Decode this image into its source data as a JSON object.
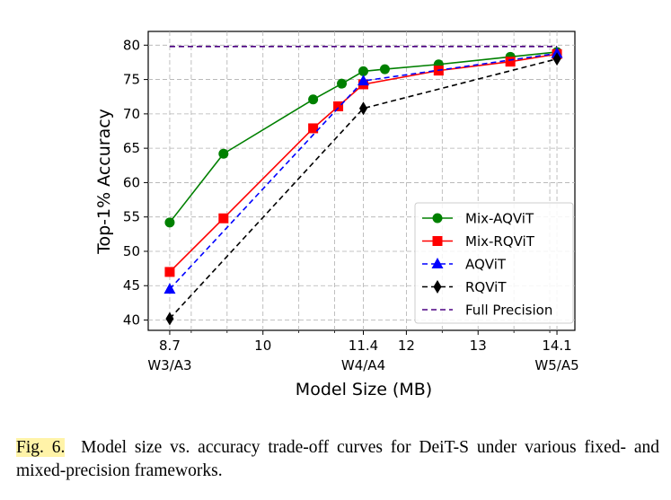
{
  "chart_data": {
    "type": "line",
    "title": "",
    "xlabel": "Model Size (MB)",
    "ylabel": "Top-1% Accuracy",
    "xlim": [
      8.4,
      14.35
    ],
    "ylim": [
      38.5,
      82
    ],
    "grid": true,
    "legend_position": "lower-right",
    "x_ticks": [
      {
        "value": 8.7,
        "label": "8.7"
      },
      {
        "value": 10,
        "label": "10"
      },
      {
        "value": 11.4,
        "label": "11.4"
      },
      {
        "value": 12,
        "label": "12"
      },
      {
        "value": 13,
        "label": "13"
      },
      {
        "value": 14.1,
        "label": "14.1"
      }
    ],
    "x_minor_ticks": [
      9.0,
      9.5,
      10.5,
      11.0,
      12.5,
      13.5,
      14.0
    ],
    "x_bit_labels": [
      {
        "value": 8.7,
        "label": "W3/A3"
      },
      {
        "value": 11.4,
        "label": "W4/A4"
      },
      {
        "value": 14.1,
        "label": "W5/A5"
      }
    ],
    "y_ticks": [
      40,
      45,
      50,
      55,
      60,
      65,
      70,
      75,
      80
    ],
    "series": [
      {
        "name": "Mix-AQViT",
        "color": "#008000",
        "marker": "circle",
        "dash": "solid",
        "x": [
          8.7,
          9.45,
          10.7,
          11.1,
          11.4,
          11.7,
          12.45,
          13.45,
          14.1
        ],
        "y": [
          54.2,
          64.2,
          72.1,
          74.4,
          76.2,
          76.5,
          77.2,
          78.3,
          79.0
        ]
      },
      {
        "name": "Mix-RQViT",
        "color": "#ff0000",
        "marker": "square",
        "dash": "solid",
        "x": [
          8.7,
          9.45,
          10.7,
          11.05,
          11.4,
          12.45,
          13.45,
          14.1
        ],
        "y": [
          47.0,
          54.8,
          67.9,
          71.1,
          74.3,
          76.3,
          77.6,
          78.7
        ]
      },
      {
        "name": "AQViT",
        "color": "#0000ff",
        "marker": "triangle",
        "dash": "dashed",
        "x": [
          8.7,
          11.4,
          14.1
        ],
        "y": [
          44.5,
          74.8,
          78.8
        ]
      },
      {
        "name": "RQViT",
        "color": "#000000",
        "marker": "diamond",
        "dash": "dashed",
        "x": [
          8.7,
          11.4,
          14.1
        ],
        "y": [
          40.2,
          70.8,
          78.0
        ]
      },
      {
        "name": "Full Precision",
        "color": "#4b0082",
        "marker": "none",
        "dash": "dashed",
        "x": [
          8.7,
          14.1
        ],
        "y": [
          79.8,
          79.8
        ]
      }
    ]
  },
  "caption": {
    "label": "Fig. 6.",
    "text": "Model size vs. accuracy trade-off curves for DeiT-S under various fixed- and mixed-precision frameworks."
  }
}
